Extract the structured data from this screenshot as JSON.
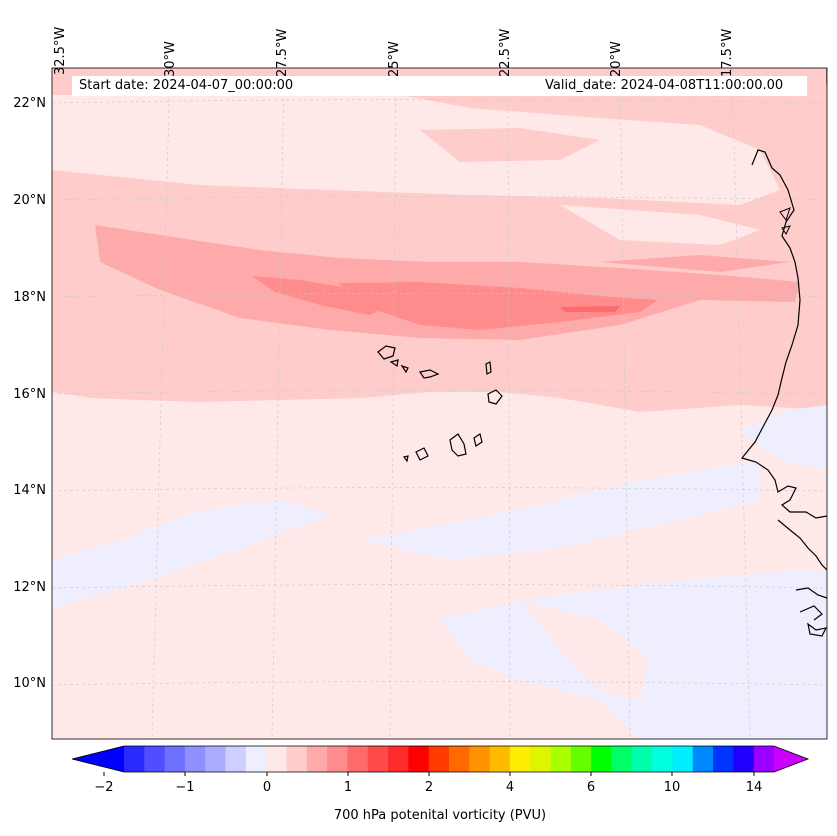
{
  "map": {
    "lat_labels": [
      "22°N",
      "20°N",
      "18°N",
      "16°N",
      "14°N",
      "12°N",
      "10°N"
    ],
    "lon_labels": [
      "32.5°W",
      "30°W",
      "27.5°W",
      "25°W",
      "22.5°W",
      "20°W",
      "17.5°W"
    ],
    "start_date": "Start date: 2024-04-07_00:00:00",
    "valid_date": "Valid_date: 2024-04-08T11:00:00.00",
    "region": "Eastern tropical Atlantic, Cape Verde islands and West African coast",
    "colors": {
      "background_low": "#ffe8e8",
      "band_light": "#ffcccc",
      "band_mid": "#ffaaaa",
      "band_strong": "#ff8c8c",
      "negative": "#eeeeff",
      "coast": "#000000"
    }
  },
  "colorbar": {
    "title": "700 hPa potenital vorticity (PVU)",
    "tick_labels": [
      "−2",
      "−1",
      "0",
      "1",
      "2",
      "4",
      "6",
      "10",
      "14"
    ],
    "levels": [
      -2,
      -1.75,
      -1.5,
      -1.25,
      -1,
      -0.75,
      -0.5,
      -0.25,
      0,
      0.25,
      0.5,
      0.75,
      1,
      1.25,
      1.5,
      1.75,
      2,
      2.5,
      3,
      3.5,
      4,
      4.5,
      5,
      5.5,
      6,
      7,
      8,
      9,
      10,
      11,
      12,
      13,
      14,
      15
    ],
    "colors": [
      "#0000ff",
      "#2a2aff",
      "#4f4fff",
      "#7070ff",
      "#8f8fff",
      "#adadff",
      "#cfcfff",
      "#eeeeff",
      "#ffe8e8",
      "#ffcccc",
      "#ffaaaa",
      "#ff8c8c",
      "#ff6a6a",
      "#ff4a4a",
      "#ff2a2a",
      "#ff0000",
      "#ff3a00",
      "#ff6a00",
      "#ff9200",
      "#ffbb00",
      "#ffee00",
      "#ddf500",
      "#aaff00",
      "#66ff00",
      "#00ff00",
      "#00ff66",
      "#00ffaa",
      "#00ffdd",
      "#00eeff",
      "#0088ff",
      "#0033ff",
      "#2200ff",
      "#9900ff",
      "#cc00ff"
    ],
    "extend": "both"
  }
}
